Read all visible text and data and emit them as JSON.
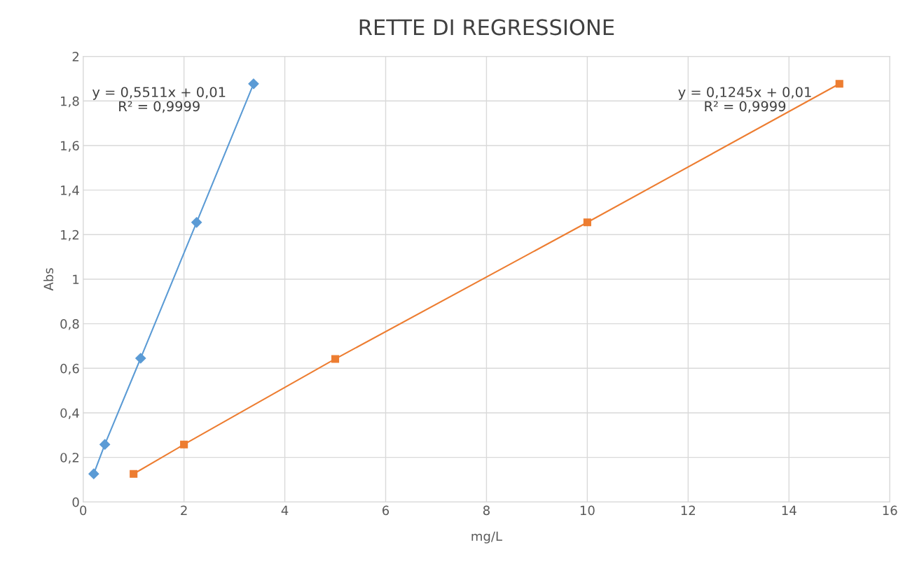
{
  "chart_data": {
    "type": "line",
    "title": "RETTE DI REGRESSIONE",
    "xlabel": "mg/L",
    "ylabel": "Abs",
    "series": [
      {
        "color": "#5b9bd5",
        "marker": "diamond",
        "x": [
          0.21,
          0.43,
          1.14,
          2.25,
          3.38
        ],
        "values": [
          0.126,
          0.258,
          0.645,
          1.255,
          1.877
        ]
      },
      {
        "color": "#ed7d31",
        "marker": "square",
        "x": [
          1,
          2,
          5,
          10,
          15
        ],
        "values": [
          0.126,
          0.258,
          0.642,
          1.255,
          1.877
        ]
      }
    ],
    "annotations": [
      "y = 0,5511x + 0,01\nR² = 0,9999",
      "y = 0,1245x + 0,01\nR² = 0,9999"
    ],
    "xlim": [
      0,
      16
    ],
    "xticks": [
      0,
      2,
      4,
      6,
      8,
      10,
      12,
      14,
      16
    ],
    "ylim": [
      0,
      2
    ],
    "yticks": [
      {
        "value": 0,
        "label": "0"
      },
      {
        "value": 0.2,
        "label": "0,2"
      },
      {
        "value": 0.4,
        "label": "0,4"
      },
      {
        "value": 0.6,
        "label": "0,6"
      },
      {
        "value": 0.8,
        "label": "0,8"
      },
      {
        "value": 1,
        "label": "1"
      },
      {
        "value": 1.2,
        "label": "1,2"
      },
      {
        "value": 1.4,
        "label": "1,4"
      },
      {
        "value": 1.6,
        "label": "1,6"
      },
      {
        "value": 1.8,
        "label": "1,8"
      },
      {
        "value": 2,
        "label": "2"
      }
    ],
    "grid": true
  }
}
